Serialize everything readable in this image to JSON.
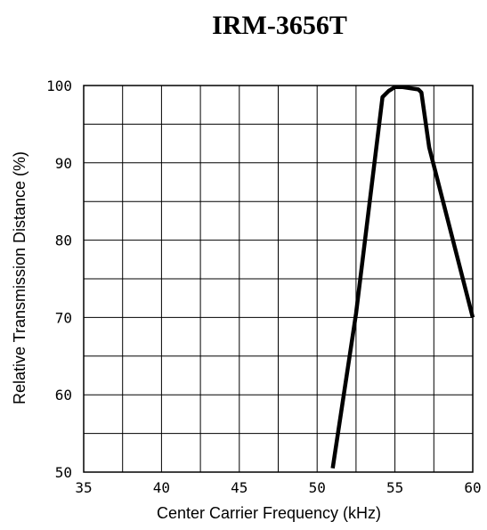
{
  "chart_data": {
    "type": "line",
    "title": "IRM-3656T",
    "xlabel": "Center Carrier Frequency  (kHz)",
    "ylabel": "Relative Transmission Distance (%)",
    "xlim": [
      35,
      60
    ],
    "ylim": [
      50,
      100
    ],
    "grid": true,
    "x_ticks": [
      "35",
      "40",
      "45",
      "50",
      "55",
      "60"
    ],
    "y_ticks": [
      "50",
      "60",
      "70",
      "80",
      "90",
      "100"
    ],
    "series": [
      {
        "color": "#000000",
        "x": [
          51.0,
          52.5,
          54.2,
          54.6,
          55.0,
          55.5,
          56.5,
          56.7,
          57.2,
          60.0
        ],
        "y": [
          50.5,
          70.5,
          98.5,
          99.3,
          99.8,
          99.8,
          99.5,
          99.1,
          92.0,
          70.0
        ]
      }
    ]
  }
}
